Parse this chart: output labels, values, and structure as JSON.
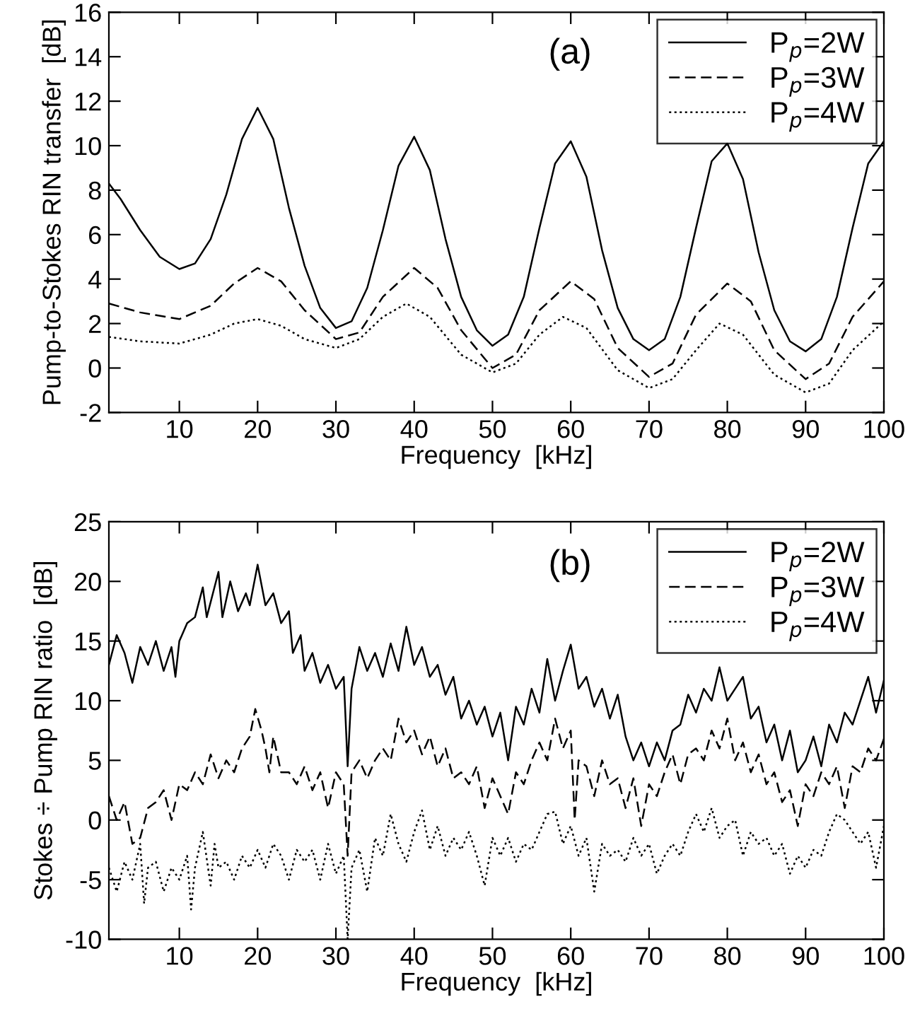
{
  "chart_data": [
    {
      "type": "line",
      "xlabel": "Frequency  [kHz]",
      "ylabel": "Pump-to-Stokes RIN transfer  [dB]",
      "annotations": [
        "(a)"
      ],
      "xlim": [
        1,
        100
      ],
      "xticks": [
        10,
        20,
        30,
        40,
        50,
        60,
        70,
        80,
        90,
        100
      ],
      "ylim": [
        -2,
        16
      ],
      "yticks": [
        -2,
        0,
        2,
        4,
        6,
        8,
        10,
        12,
        14,
        16
      ],
      "grid": false,
      "legend": "top right",
      "marker": "none",
      "series": [
        {
          "name": "P$_{p}$=2W",
          "color": "#000000",
          "line_style": "solid",
          "x": [
            1,
            2.5,
            5,
            7.5,
            10,
            12,
            14,
            16,
            18,
            20,
            22,
            24,
            26,
            28,
            30,
            32,
            34,
            36,
            38,
            40,
            42,
            44,
            46,
            48,
            50,
            52,
            54,
            56,
            58,
            60,
            62,
            64,
            66,
            68,
            70,
            72,
            74,
            76,
            78,
            80,
            82,
            84,
            86,
            88,
            90,
            92,
            94,
            96,
            98,
            100
          ],
          "values": [
            8.3,
            7.6,
            6.2,
            5.0,
            4.45,
            4.7,
            5.8,
            7.8,
            10.3,
            11.7,
            10.3,
            7.2,
            4.6,
            2.7,
            1.8,
            2.1,
            3.6,
            6.2,
            9.1,
            10.4,
            8.9,
            5.8,
            3.2,
            1.7,
            1.0,
            1.5,
            3.2,
            6.3,
            9.2,
            10.2,
            8.6,
            5.3,
            2.7,
            1.3,
            0.8,
            1.3,
            3.2,
            6.3,
            9.3,
            10.1,
            8.5,
            5.2,
            2.6,
            1.2,
            0.75,
            1.3,
            3.2,
            6.3,
            9.2,
            10.2
          ]
        },
        {
          "name": "P$_{p}$=3W",
          "color": "#000000",
          "line_style": "dashed",
          "x": [
            1,
            5,
            10,
            14,
            17,
            20,
            23,
            26,
            30,
            33,
            36,
            40,
            43,
            46,
            50,
            53,
            56,
            60,
            63,
            66,
            70,
            73,
            76,
            80,
            83,
            86,
            90,
            93,
            96,
            100
          ],
          "values": [
            2.9,
            2.5,
            2.2,
            2.8,
            3.8,
            4.5,
            3.9,
            2.6,
            1.3,
            1.6,
            3.2,
            4.5,
            3.6,
            1.7,
            0.0,
            0.6,
            2.6,
            3.9,
            3.1,
            0.9,
            -0.4,
            0.2,
            2.4,
            3.8,
            3.0,
            0.8,
            -0.5,
            0.2,
            2.3,
            3.9
          ]
        },
        {
          "name": "P$_{p}$=4W",
          "color": "#000000",
          "line_style": "dotted",
          "x": [
            1,
            5,
            10,
            14,
            17,
            20,
            23,
            26,
            30,
            33,
            36,
            39,
            42,
            46,
            50,
            53,
            56,
            59,
            62,
            66,
            70,
            73,
            76,
            79,
            82,
            86,
            90,
            93,
            96,
            100
          ],
          "values": [
            1.4,
            1.2,
            1.1,
            1.5,
            2.0,
            2.2,
            1.9,
            1.3,
            0.9,
            1.3,
            2.3,
            2.9,
            2.3,
            0.6,
            -0.2,
            0.2,
            1.5,
            2.3,
            1.8,
            -0.1,
            -0.9,
            -0.5,
            0.8,
            2.0,
            1.5,
            -0.3,
            -1.1,
            -0.7,
            0.8,
            2.1
          ]
        }
      ]
    },
    {
      "type": "line",
      "xlabel": "Frequency  [kHz]",
      "ylabel": "Stokes ÷ Pump RIN ratio  [dB]",
      "annotations": [
        "(b)"
      ],
      "xlim": [
        1,
        100
      ],
      "xticks": [
        10,
        20,
        30,
        40,
        50,
        60,
        70,
        80,
        90,
        100
      ],
      "ylim": [
        -10,
        25
      ],
      "yticks": [
        -10,
        -5,
        0,
        5,
        10,
        15,
        20,
        25
      ],
      "grid": false,
      "legend": "top right",
      "marker": "none",
      "series": [
        {
          "name": "P$_{p}$=2W",
          "color": "#000000",
          "line_style": "solid",
          "x": [
            1,
            2,
            3,
            4,
            5,
            6,
            7,
            8,
            9,
            9.5,
            10,
            11,
            12,
            13,
            13.5,
            15,
            15.5,
            16.5,
            17.5,
            18.5,
            19,
            20,
            21,
            22,
            23,
            24,
            24.5,
            25.5,
            26,
            27,
            28,
            29,
            30,
            31,
            31.5,
            32,
            33,
            34,
            35,
            36,
            37,
            38,
            39,
            40,
            41,
            42,
            43,
            44,
            45,
            46,
            47,
            48,
            49,
            50,
            51,
            52,
            53,
            54,
            55,
            56,
            57,
            58,
            59,
            60,
            61,
            62,
            63,
            64,
            65,
            66,
            67,
            68,
            69,
            70,
            71,
            72,
            73,
            74,
            75,
            76,
            77,
            78,
            79,
            80,
            81,
            82,
            83,
            84,
            85,
            86,
            87,
            88,
            89,
            90,
            91,
            92,
            93,
            94,
            95,
            96,
            97,
            98,
            99,
            100
          ],
          "values": [
            13,
            15.5,
            14,
            11.5,
            14.5,
            13,
            15,
            12.5,
            14.5,
            12,
            15,
            16.5,
            17,
            19.5,
            17,
            20.8,
            17,
            20,
            17.5,
            19,
            18,
            21.4,
            18,
            19,
            16.5,
            17.5,
            14,
            15.5,
            12.5,
            14,
            11.5,
            13,
            11,
            12,
            4.5,
            11,
            14.5,
            12.5,
            14,
            12,
            14.8,
            12.5,
            16.2,
            13,
            14.5,
            12,
            13,
            10.5,
            12,
            8.5,
            10,
            8,
            9.5,
            7,
            9,
            5,
            9.5,
            8,
            11,
            9,
            13.5,
            10,
            12.5,
            14.7,
            11,
            12,
            9.5,
            11,
            8.5,
            10.5,
            7,
            5,
            6.5,
            4.5,
            6.5,
            5,
            7.5,
            8,
            10.5,
            9,
            11,
            10,
            12.8,
            10,
            11,
            12,
            8.5,
            9.5,
            6.5,
            8,
            5,
            7.5,
            4,
            5,
            7,
            4.5,
            8,
            6.5,
            9,
            8,
            10,
            12,
            9,
            11.7
          ]
        },
        {
          "name": "P$_{p}$=3W",
          "color": "#000000",
          "line_style": "dashed",
          "x": [
            1,
            2,
            3,
            4,
            5,
            6,
            7,
            8,
            9,
            10,
            11,
            12,
            13,
            14,
            15,
            16,
            17,
            18,
            19,
            19.7,
            20.5,
            21,
            21.5,
            22,
            23,
            24,
            25,
            26,
            27,
            28,
            29,
            30,
            31,
            31.5,
            32,
            33,
            34,
            35,
            36,
            37,
            38,
            39,
            40,
            41,
            42,
            43,
            44,
            45,
            46,
            47,
            48,
            49,
            50,
            51,
            52,
            53,
            54,
            55,
            56,
            57,
            58,
            59,
            60,
            60.5,
            61,
            62,
            63,
            64,
            65,
            66,
            67,
            68,
            69,
            70,
            71,
            72,
            73,
            74,
            75,
            76,
            77,
            78,
            79,
            80,
            81,
            82,
            83,
            84,
            85,
            86,
            87,
            88,
            89,
            90,
            91,
            92,
            93,
            94,
            95,
            96,
            97,
            98,
            99,
            100
          ],
          "values": [
            2,
            0,
            1.5,
            -2,
            -1.5,
            1,
            1.5,
            2.5,
            0,
            3,
            2.5,
            4,
            3,
            5.5,
            3.5,
            5,
            4,
            6,
            7,
            9.3,
            7.5,
            6,
            4,
            7,
            4,
            4,
            3,
            4.5,
            2.5,
            4,
            1,
            4,
            3,
            -3,
            4,
            5,
            3.5,
            5,
            6,
            5,
            8.5,
            6.5,
            7.5,
            5.5,
            7,
            4.5,
            6,
            3.5,
            4,
            3,
            4.5,
            1,
            3.5,
            2,
            0.5,
            4,
            3,
            5,
            6.5,
            5,
            8.5,
            6,
            7.5,
            0,
            5,
            4.5,
            2,
            5,
            3,
            3.5,
            1,
            3.5,
            -0.5,
            3,
            2,
            4,
            5.5,
            3,
            5.5,
            6,
            5,
            7.5,
            6,
            8.5,
            5,
            6.5,
            4,
            5.5,
            3,
            4,
            1.5,
            2.5,
            -0.5,
            3,
            2,
            4,
            3,
            4.5,
            1,
            4.5,
            4,
            6,
            5,
            6.8
          ]
        },
        {
          "name": "P$_{p}$=4W",
          "color": "#000000",
          "line_style": "dotted",
          "x": [
            1,
            2,
            3,
            4,
            5,
            5.5,
            6,
            7,
            8,
            9,
            10,
            11,
            11.5,
            12,
            13,
            14,
            14.5,
            15,
            16,
            17,
            18,
            19,
            20,
            21,
            22,
            23,
            24,
            25,
            26,
            27,
            28,
            29,
            30,
            31,
            31.5,
            32,
            33,
            34,
            35,
            36,
            37,
            38,
            39,
            40,
            41,
            42,
            43,
            44,
            45,
            46,
            47,
            48,
            49,
            50,
            51,
            52,
            53,
            54,
            55,
            56,
            57,
            58,
            59,
            60,
            61,
            62,
            63,
            64,
            65,
            66,
            67,
            68,
            69,
            70,
            71,
            72,
            73,
            74,
            75,
            76,
            77,
            78,
            79,
            80,
            81,
            82,
            83,
            84,
            85,
            86,
            87,
            88,
            89,
            90,
            91,
            92,
            93,
            94,
            95,
            96,
            97,
            98,
            99,
            100
          ],
          "values": [
            -4,
            -6,
            -3.5,
            -5,
            -2,
            -7,
            -4,
            -3.5,
            -6,
            -4,
            -5,
            -3,
            -7.5,
            -4,
            -1,
            -5.5,
            -2,
            -4,
            -3.5,
            -5,
            -3,
            -4,
            -2.5,
            -4,
            -2,
            -3,
            -5,
            -2.5,
            -3.5,
            -2.5,
            -5,
            -2,
            -4.5,
            -3,
            -10,
            -4,
            -2.5,
            -6,
            -1.5,
            -3,
            0.5,
            -2,
            -3.5,
            -1,
            0.8,
            -2.5,
            -0.5,
            -3,
            -1.5,
            -2.5,
            -1,
            -3,
            -5.5,
            -1.5,
            -3,
            -1.5,
            -3.5,
            -2,
            -2.5,
            -1,
            0.5,
            0.7,
            -2,
            -0.5,
            -3,
            -1.5,
            -6,
            -2,
            -3,
            -2.5,
            -3.5,
            -1.5,
            -3,
            -2,
            -4.5,
            -3,
            -2,
            -3,
            -1,
            0.5,
            -1,
            1,
            -1.5,
            -0.5,
            0,
            -3,
            -1,
            -2,
            -1.5,
            -3,
            -2,
            -4.5,
            -3,
            -4,
            -2.5,
            -3,
            -1,
            0.5,
            0,
            -1,
            -2,
            -1,
            -4,
            -0.5
          ]
        }
      ]
    }
  ]
}
